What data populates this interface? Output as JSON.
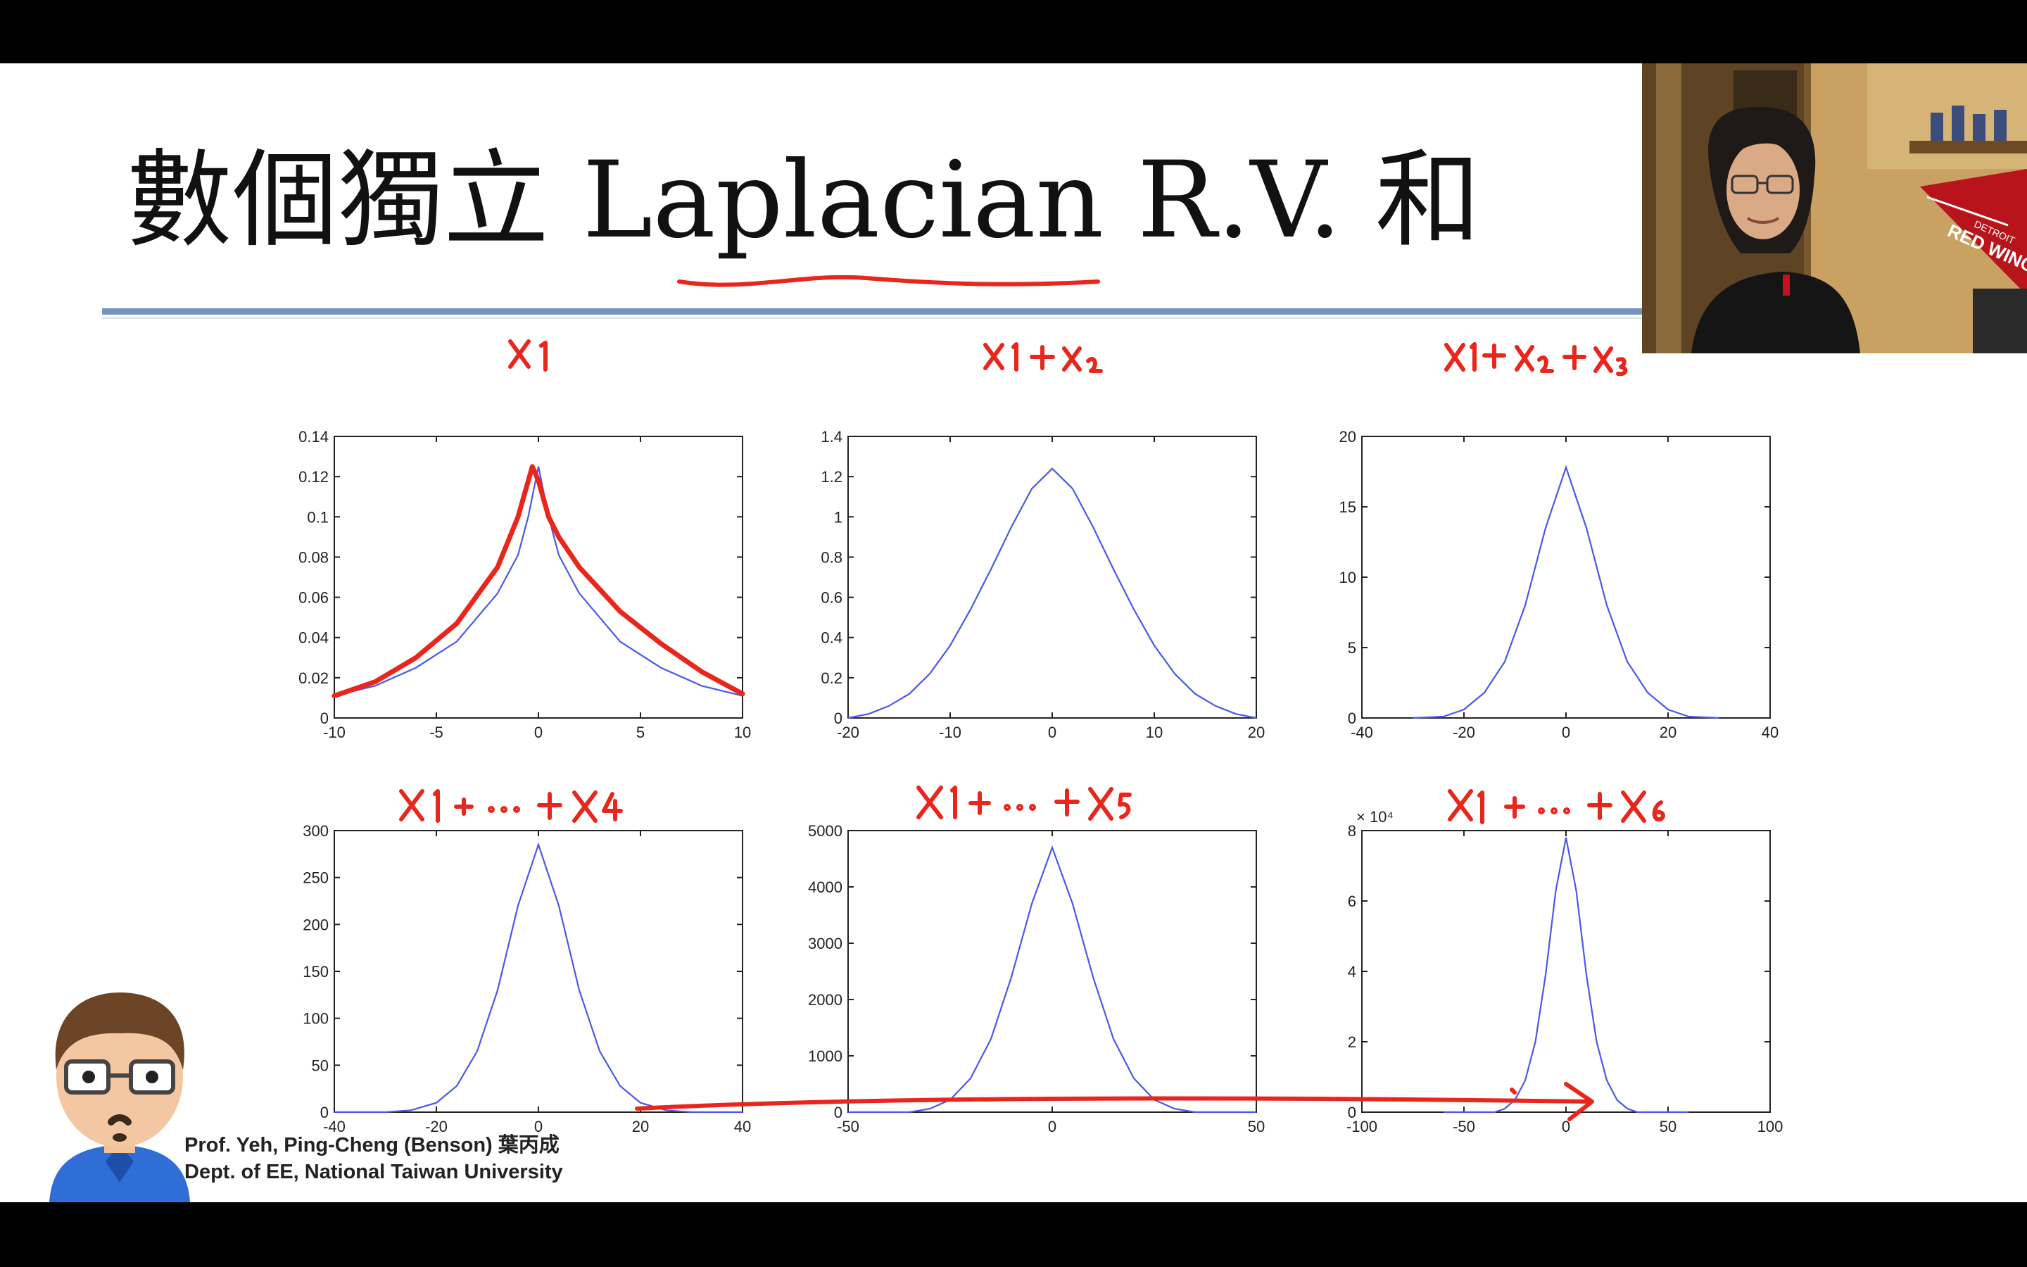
{
  "slide": {
    "title": "數個獨立 Laplacian R.V. 和",
    "caption_line1": "Prof. Yeh, Ping-Cheng (Benson) 葉丙成",
    "caption_line2": "Dept. of EE,  National Taiwan University"
  },
  "webcam": {
    "pennant_text": "RED WINGS",
    "pennant_small": "DETROIT"
  },
  "annotations": [
    "x1",
    "x1+x2",
    "x1+x2+x3",
    "x1+···+x4",
    "x1+···+x5",
    "x1+···+x6"
  ],
  "chart_data": [
    {
      "type": "line",
      "title": "",
      "xlabel": "",
      "ylabel": "",
      "xlim": [
        -10,
        10
      ],
      "ylim": [
        0,
        0.14
      ],
      "xticks": [
        -10,
        -5,
        0,
        5,
        10
      ],
      "yticks": [
        0,
        0.02,
        0.04,
        0.06,
        0.08,
        0.1,
        0.12,
        0.14
      ],
      "ytick_labels": [
        "0",
        "0.02",
        "0.04",
        "0.06",
        "0.08",
        "0.1",
        "0.12",
        "0.14"
      ],
      "exponent_label": "",
      "series": [
        {
          "color": "#4a58e8",
          "x": [
            -10,
            -8,
            -6,
            -4,
            -2,
            -1,
            -0.5,
            0,
            0.5,
            1,
            2,
            4,
            6,
            8,
            10
          ],
          "y": [
            0.011,
            0.016,
            0.025,
            0.038,
            0.062,
            0.081,
            0.1,
            0.125,
            0.1,
            0.081,
            0.062,
            0.038,
            0.025,
            0.016,
            0.011
          ]
        }
      ],
      "annotation": {
        "color": "#e8261c",
        "x": [
          -10,
          -8,
          -6,
          -4,
          -2,
          -1,
          -0.3,
          0,
          0.5,
          1,
          2,
          4,
          6,
          8,
          10
        ],
        "y": [
          0.011,
          0.018,
          0.03,
          0.047,
          0.075,
          0.1,
          0.125,
          0.118,
          0.1,
          0.09,
          0.075,
          0.053,
          0.037,
          0.023,
          0.012
        ]
      }
    },
    {
      "type": "line",
      "title": "",
      "xlabel": "",
      "ylabel": "",
      "xlim": [
        -20,
        20
      ],
      "ylim": [
        0,
        1.4
      ],
      "xticks": [
        -20,
        -10,
        0,
        10,
        20
      ],
      "yticks": [
        0,
        0.2,
        0.4,
        0.6,
        0.8,
        1,
        1.2,
        1.4
      ],
      "ytick_labels": [
        "0",
        "0.2",
        "0.4",
        "0.6",
        "0.8",
        "1",
        "1.2",
        "1.4"
      ],
      "exponent_label": "",
      "series": [
        {
          "color": "#4a58e8",
          "x": [
            -20,
            -18,
            -16,
            -14,
            -12,
            -10,
            -8,
            -6,
            -4,
            -2,
            0,
            2,
            4,
            6,
            8,
            10,
            12,
            14,
            16,
            18,
            20
          ],
          "y": [
            0.0,
            0.02,
            0.06,
            0.12,
            0.22,
            0.36,
            0.54,
            0.74,
            0.95,
            1.14,
            1.24,
            1.14,
            0.95,
            0.74,
            0.54,
            0.36,
            0.22,
            0.12,
            0.06,
            0.02,
            0.0
          ]
        }
      ]
    },
    {
      "type": "line",
      "title": "",
      "xlabel": "",
      "ylabel": "",
      "xlim": [
        -40,
        40
      ],
      "ylim": [
        0,
        20
      ],
      "xticks": [
        -40,
        -20,
        0,
        20,
        40
      ],
      "yticks": [
        0,
        5,
        10,
        15,
        20
      ],
      "ytick_labels": [
        "0",
        "5",
        "10",
        "15",
        "20"
      ],
      "exponent_label": "",
      "series": [
        {
          "color": "#4a58e8",
          "x": [
            -30,
            -24,
            -20,
            -16,
            -12,
            -8,
            -4,
            0,
            4,
            8,
            12,
            16,
            20,
            24,
            30
          ],
          "y": [
            0,
            0.1,
            0.6,
            1.8,
            4.0,
            8.0,
            13.5,
            17.8,
            13.5,
            8.0,
            4.0,
            1.8,
            0.6,
            0.1,
            0
          ]
        }
      ]
    },
    {
      "type": "line",
      "title": "",
      "xlabel": "",
      "ylabel": "",
      "xlim": [
        -40,
        40
      ],
      "ylim": [
        0,
        300
      ],
      "xticks": [
        -40,
        -20,
        0,
        20,
        40
      ],
      "yticks": [
        0,
        50,
        100,
        150,
        200,
        250,
        300
      ],
      "ytick_labels": [
        "0",
        "50",
        "100",
        "150",
        "200",
        "250",
        "300"
      ],
      "exponent_label": "",
      "series": [
        {
          "color": "#4a58e8",
          "x": [
            -40,
            -30,
            -25,
            -20,
            -16,
            -12,
            -8,
            -4,
            0,
            4,
            8,
            12,
            16,
            20,
            25,
            30,
            40
          ],
          "y": [
            0,
            0,
            2,
            10,
            28,
            65,
            130,
            220,
            285,
            220,
            130,
            65,
            28,
            10,
            2,
            0,
            0
          ]
        }
      ]
    },
    {
      "type": "line",
      "title": "",
      "xlabel": "",
      "ylabel": "",
      "xlim": [
        -50,
        50
      ],
      "ylim": [
        0,
        5000
      ],
      "xticks": [
        -50,
        0,
        50
      ],
      "yticks": [
        0,
        1000,
        2000,
        3000,
        4000,
        5000
      ],
      "ytick_labels": [
        "0",
        "1000",
        "2000",
        "3000",
        "4000",
        "5000"
      ],
      "exponent_label": "",
      "series": [
        {
          "color": "#4a58e8",
          "x": [
            -50,
            -35,
            -30,
            -25,
            -20,
            -15,
            -10,
            -5,
            0,
            5,
            10,
            15,
            20,
            25,
            30,
            35,
            50
          ],
          "y": [
            0,
            0,
            60,
            220,
            600,
            1300,
            2400,
            3700,
            4700,
            3700,
            2400,
            1300,
            600,
            220,
            60,
            0,
            0
          ]
        }
      ]
    },
    {
      "type": "line",
      "title": "",
      "xlabel": "",
      "ylabel": "",
      "xlim": [
        -100,
        100
      ],
      "ylim": [
        0,
        8
      ],
      "xticks": [
        -100,
        -50,
        0,
        50,
        100
      ],
      "yticks": [
        0,
        2,
        4,
        6,
        8
      ],
      "ytick_labels": [
        "0",
        "2",
        "4",
        "6",
        "8"
      ],
      "exponent_label": "× 10⁴",
      "series": [
        {
          "color": "#4a58e8",
          "x": [
            -60,
            -35,
            -30,
            -25,
            -20,
            -15,
            -10,
            -5,
            0,
            5,
            10,
            15,
            20,
            25,
            30,
            35,
            60
          ],
          "y": [
            0,
            0,
            0.1,
            0.35,
            0.9,
            2.0,
            3.9,
            6.3,
            7.8,
            6.3,
            3.9,
            2.0,
            0.9,
            0.35,
            0.1,
            0,
            0
          ]
        }
      ]
    }
  ]
}
